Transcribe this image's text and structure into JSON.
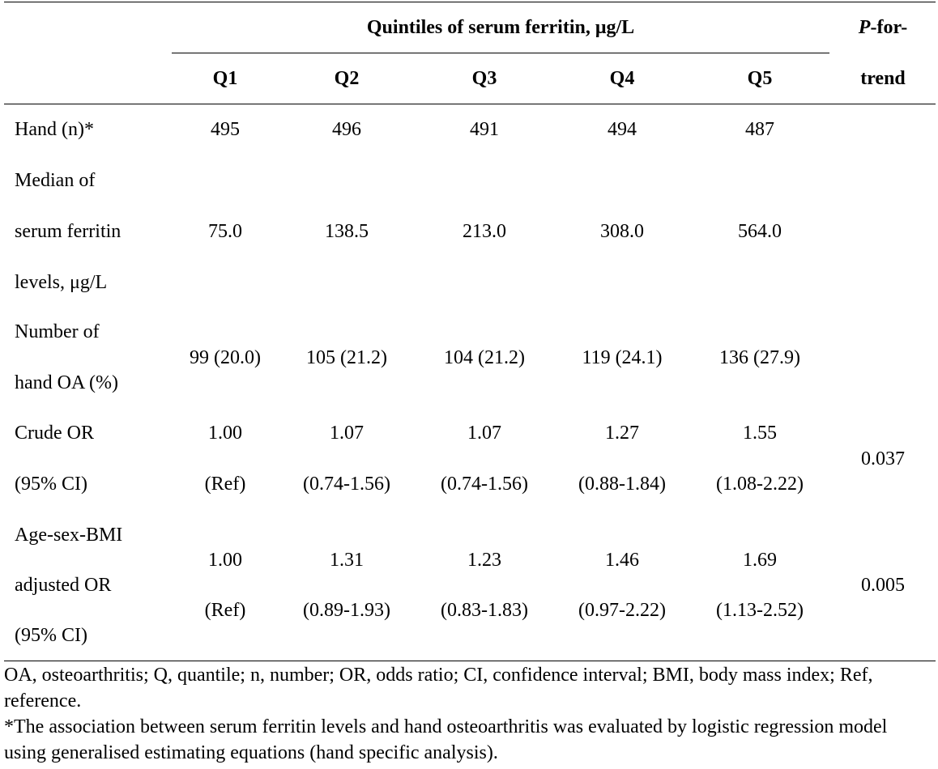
{
  "header": {
    "group": "Quintiles of serum ferritin, μg/L",
    "ptrend_italic": "P",
    "ptrend_line1": "-for-",
    "ptrend_line2": "trend",
    "columns": [
      "Q1",
      "Q2",
      "Q3",
      "Q4",
      "Q5"
    ]
  },
  "rows": {
    "hand_n": {
      "label": "Hand (n)*",
      "values": [
        "495",
        "496",
        "491",
        "494",
        "487"
      ]
    },
    "median": {
      "label": [
        "Median of",
        "serum ferritin",
        "levels, μg/L"
      ],
      "values": [
        "75.0",
        "138.5",
        "213.0",
        "308.0",
        "564.0"
      ]
    },
    "number_oa": {
      "label": [
        "Number of",
        "hand OA (%)"
      ],
      "values": [
        "99 (20.0)",
        "105 (21.2)",
        "104 (21.2)",
        "119 (24.1)",
        "136 (27.9)"
      ]
    },
    "crude": {
      "label": [
        "Crude OR",
        "(95% CI)"
      ],
      "or": [
        "1.00",
        "1.07",
        "1.07",
        "1.27",
        "1.55"
      ],
      "ci": [
        "(Ref)",
        "(0.74-1.56)",
        "(0.74-1.56)",
        "(0.88-1.84)",
        "(1.08-2.22)"
      ],
      "p": "0.037"
    },
    "adjusted": {
      "label": [
        "Age-sex-BMI",
        "adjusted OR",
        "(95% CI)"
      ],
      "or": [
        "1.00",
        "1.31",
        "1.23",
        "1.46",
        "1.69"
      ],
      "ci": [
        "(Ref)",
        "(0.89-1.93)",
        "(0.83-1.83)",
        "(0.97-2.22)",
        "(1.13-2.52)"
      ],
      "p": "0.005"
    }
  },
  "footnotes": [
    "OA, osteoarthritis; Q, quantile; n, number; OR, odds ratio; CI, confidence interval; BMI, body mass index; Ref, reference.",
    "*The association between serum ferritin levels and hand osteoarthritis was evaluated by logistic regression model using generalised estimating equations (hand specific analysis)."
  ]
}
